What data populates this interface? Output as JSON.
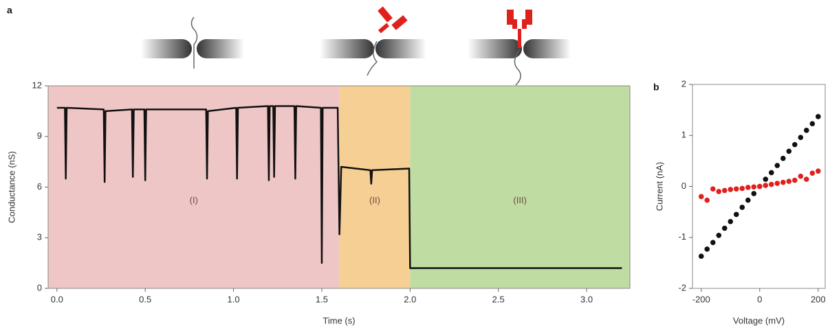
{
  "chart_data": [
    {
      "type": "line",
      "panel_label": "a",
      "x_label": "Time (s)",
      "y_label": "Conductance (nS)",
      "xlim": [
        -0.05,
        3.245
      ],
      "ylim": [
        0,
        12
      ],
      "xticks": [
        {
          "value": 0,
          "label": "0.0"
        },
        0.5,
        {
          "value": 1,
          "label": "1.0"
        },
        1.5,
        {
          "value": 2,
          "label": "2.0"
        },
        2.5,
        {
          "value": 3,
          "label": "3.0"
        }
      ],
      "yticks": [
        0,
        3,
        6,
        9,
        12
      ],
      "regions": [
        {
          "label": "(I)",
          "start": -0.05,
          "end": 1.6,
          "color": "#efc6c6"
        },
        {
          "label": "(II)",
          "start": 1.6,
          "end": 2.0,
          "color": "#f5cf94"
        },
        {
          "label": "(III)",
          "start": 2.0,
          "end": 3.245,
          "color": "#bfdda2"
        }
      ],
      "color": "#111111",
      "x": [
        0.0,
        0.045,
        0.05,
        0.055,
        0.265,
        0.27,
        0.275,
        0.425,
        0.43,
        0.435,
        0.495,
        0.5,
        0.505,
        0.845,
        0.85,
        0.855,
        1.015,
        1.02,
        1.025,
        1.195,
        1.2,
        1.205,
        1.225,
        1.23,
        1.235,
        1.345,
        1.35,
        1.355,
        1.495,
        1.5,
        1.505,
        1.59,
        1.6,
        1.61,
        1.775,
        1.78,
        1.785,
        1.995,
        2.0,
        3.2
      ],
      "values": [
        10.7,
        10.7,
        6.5,
        10.7,
        10.6,
        6.3,
        10.5,
        10.6,
        6.6,
        10.6,
        10.6,
        6.4,
        10.6,
        10.6,
        6.5,
        10.5,
        10.7,
        6.5,
        10.7,
        10.8,
        6.4,
        10.8,
        10.8,
        6.6,
        10.8,
        10.8,
        6.5,
        10.8,
        10.7,
        1.5,
        10.7,
        10.7,
        3.2,
        7.2,
        7.0,
        6.2,
        7.0,
        7.1,
        1.2,
        1.2
      ]
    },
    {
      "type": "scatter",
      "panel_label": "b",
      "x_label": "Voltage (mV)",
      "y_label": "Current (nA)",
      "xlim": [
        -230,
        224
      ],
      "ylim": [
        -2,
        2
      ],
      "xticks": [
        -200,
        0,
        200
      ],
      "yticks": [
        -2,
        -1,
        0,
        1,
        2
      ],
      "x": [
        -200,
        -180,
        -160,
        -140,
        -120,
        -100,
        -80,
        -60,
        -40,
        -20,
        0,
        20,
        40,
        60,
        80,
        100,
        120,
        140,
        160,
        180,
        200
      ],
      "series": [
        {
          "color": "#111111",
          "values": [
            -1.37,
            -1.23,
            -1.1,
            -0.96,
            -0.82,
            -0.69,
            -0.55,
            -0.41,
            -0.27,
            -0.14,
            0,
            0.14,
            0.27,
            0.41,
            0.55,
            0.69,
            0.82,
            0.96,
            1.1,
            1.23,
            1.37
          ]
        },
        {
          "color": "#e0201c",
          "values": [
            -0.2,
            -0.27,
            -0.05,
            -0.1,
            -0.08,
            -0.06,
            -0.05,
            -0.04,
            -0.02,
            -0.01,
            0,
            0.02,
            0.04,
            0.06,
            0.08,
            0.1,
            0.12,
            0.2,
            0.14,
            0.26,
            0.3
          ]
        }
      ]
    }
  ]
}
